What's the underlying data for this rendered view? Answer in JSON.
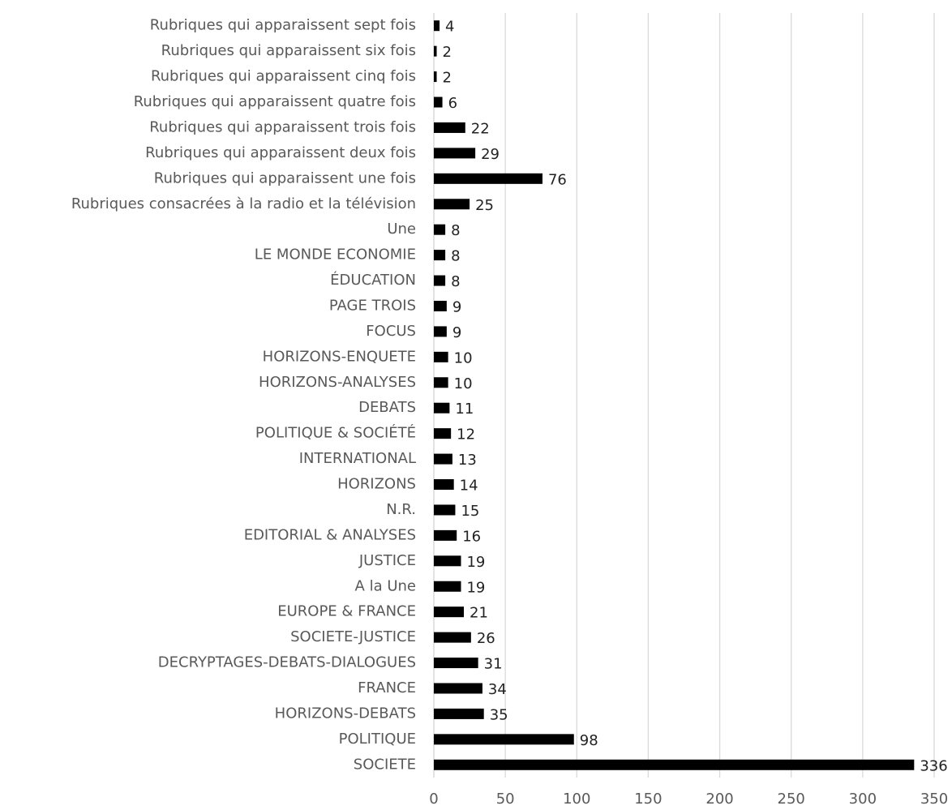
{
  "chart_data": {
    "type": "barh",
    "categories": [
      "Rubriques qui apparaissent sept fois",
      "Rubriques qui apparaissent six fois",
      "Rubriques qui apparaissent cinq fois",
      "Rubriques qui apparaissent quatre fois",
      "Rubriques qui apparaissent trois fois",
      "Rubriques qui apparaissent deux fois",
      "Rubriques qui apparaissent une fois",
      "Rubriques consacrées à la radio et la télévision",
      "Une",
      "LE MONDE ECONOMIE",
      "ÉDUCATION",
      "PAGE TROIS",
      "FOCUS",
      "HORIZONS-ENQUETE",
      "HORIZONS-ANALYSES",
      "DEBATS",
      "POLITIQUE & SOCIÉTÉ",
      "INTERNATIONAL",
      "HORIZONS",
      "N.R.",
      "EDITORIAL & ANALYSES",
      "JUSTICE",
      "A la Une",
      "EUROPE & FRANCE",
      "SOCIETE-JUSTICE",
      "DECRYPTAGES-DEBATS-DIALOGUES",
      "FRANCE",
      "HORIZONS-DEBATS",
      "POLITIQUE",
      "SOCIETE"
    ],
    "values": [
      4,
      2,
      2,
      6,
      22,
      29,
      76,
      25,
      8,
      8,
      8,
      9,
      9,
      10,
      10,
      11,
      12,
      13,
      14,
      15,
      16,
      19,
      19,
      21,
      26,
      31,
      34,
      35,
      98,
      336
    ],
    "color": "#000000",
    "xlim": [
      0,
      350
    ],
    "xticks": [
      0,
      50,
      100,
      150,
      200,
      250,
      300,
      350
    ],
    "grid": true
  }
}
